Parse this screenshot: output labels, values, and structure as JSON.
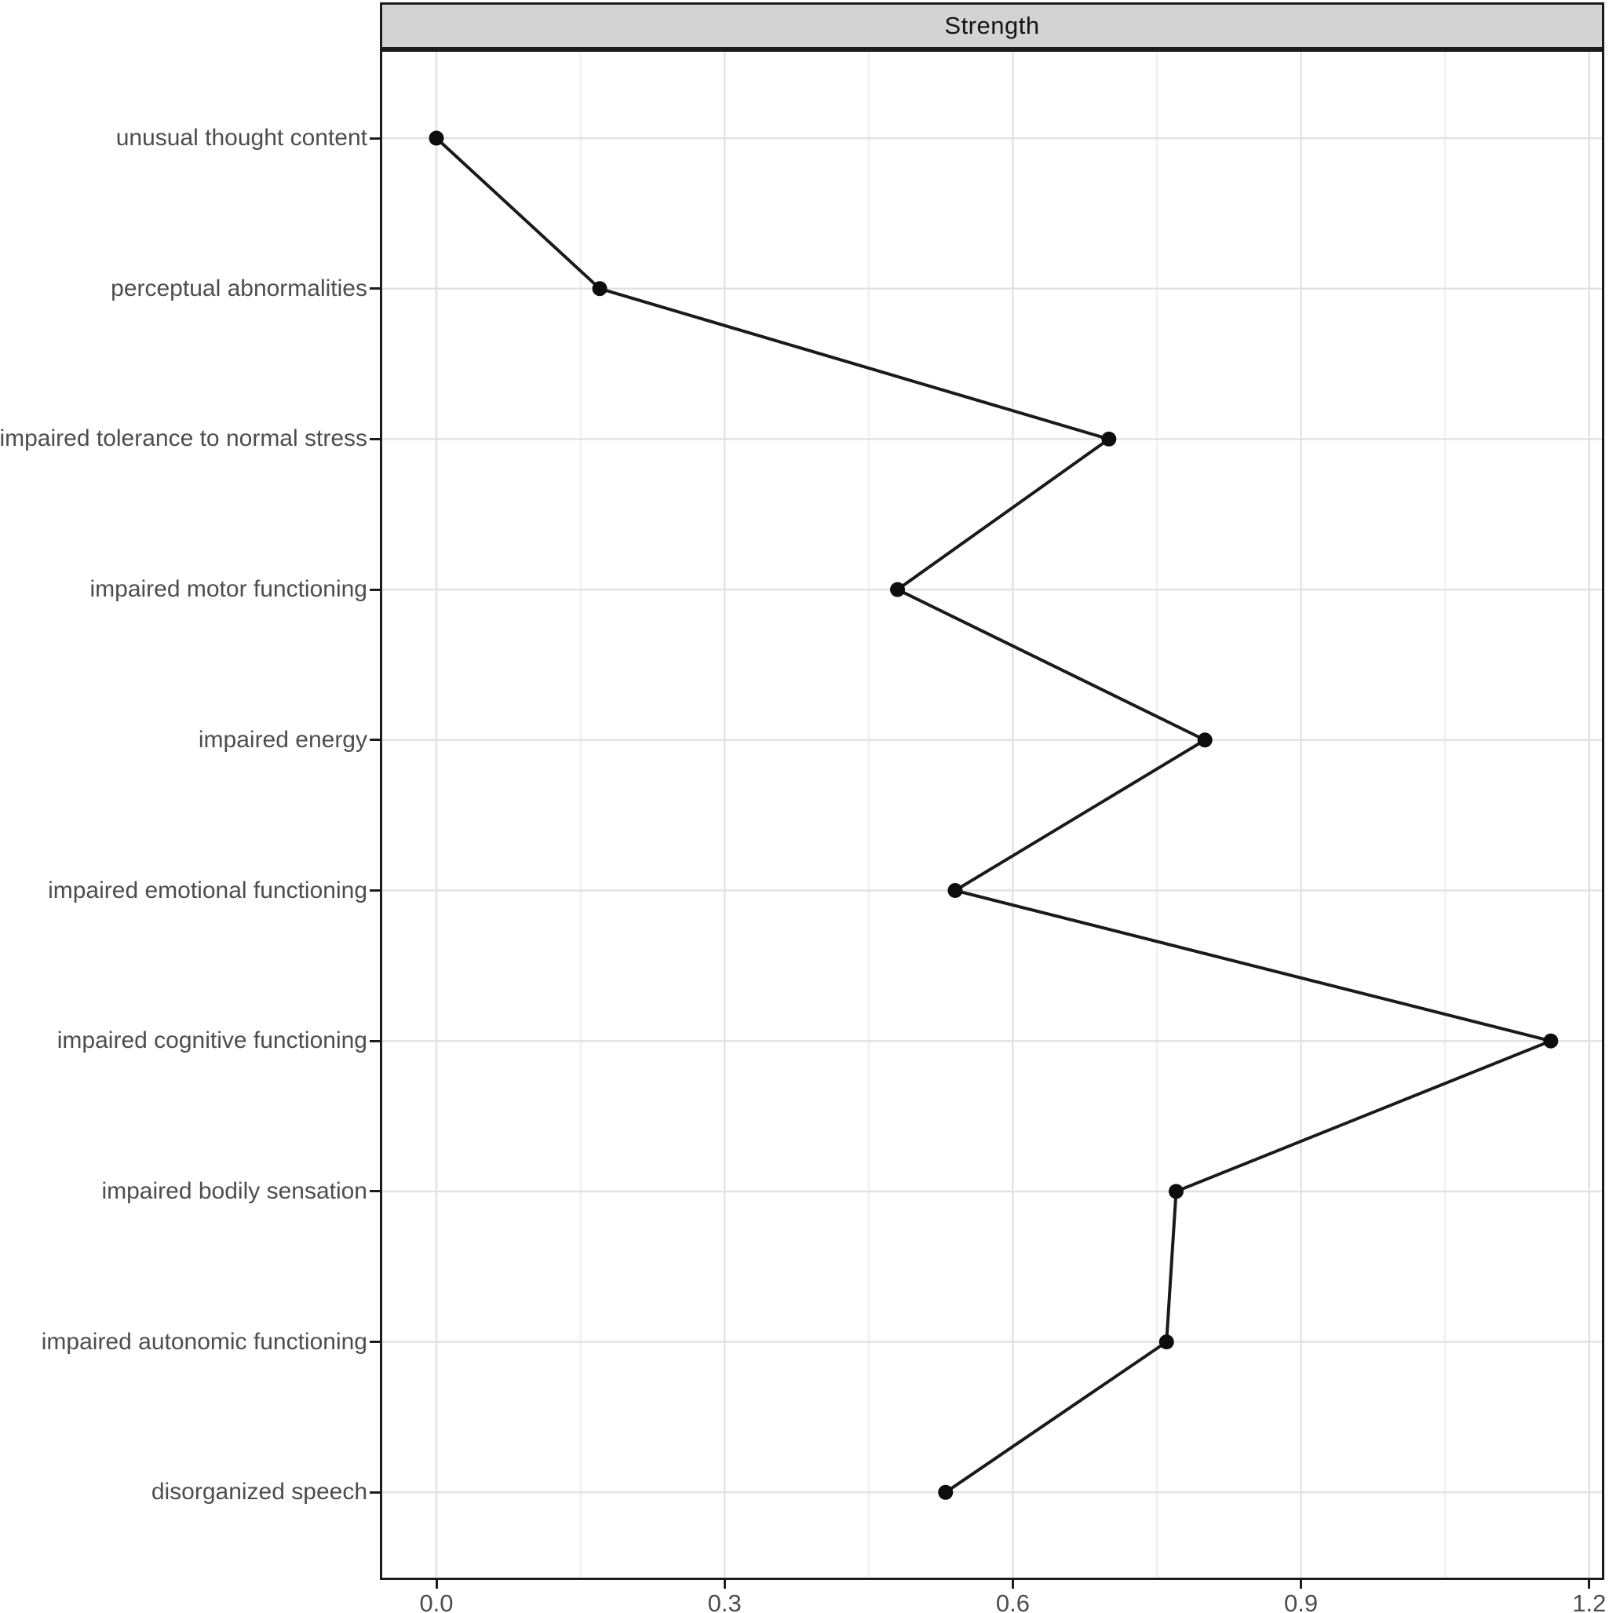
{
  "chart_data": {
    "type": "line",
    "title": "Strength",
    "categories": [
      "unusual thought content",
      "perceptual abnormalities",
      "impaired tolerance to normal stress",
      "impaired motor functioning",
      "impaired energy",
      "impaired emotional functioning",
      "impaired cognitive functioning",
      "impaired bodily sensation",
      "impaired autonomic functioning",
      "disorganized speech"
    ],
    "values": [
      0.0,
      0.17,
      0.7,
      0.48,
      0.8,
      0.54,
      1.16,
      0.77,
      0.76,
      0.53
    ],
    "x_tick_labels": [
      "0.0",
      "0.3",
      "0.6",
      "0.9",
      "1.2"
    ],
    "x_major_ticks": [
      0.0,
      0.3,
      0.6,
      0.9,
      1.2
    ],
    "x_minor_gridlines": [
      0.15,
      0.45,
      0.75,
      1.05
    ],
    "xlim": [
      -0.056,
      1.216
    ],
    "xlabel": "",
    "ylabel": "",
    "legend": "none",
    "grid": "major-and-minor-vertical, major-horizontal-per-category",
    "marker": "filled-circle",
    "style": {
      "background": "#ffffff",
      "strip_background": "#d3d3d3",
      "strip_text": "#141414",
      "panel_border": "#1b1b1b",
      "grid_major": "#e3e3e3",
      "grid_minor": "#efefef",
      "axis_text": "#4d4d4d",
      "tick_color": "#1b1b1b",
      "line_color": "#1a1a1a",
      "point_color": "#0d0d0d"
    }
  }
}
